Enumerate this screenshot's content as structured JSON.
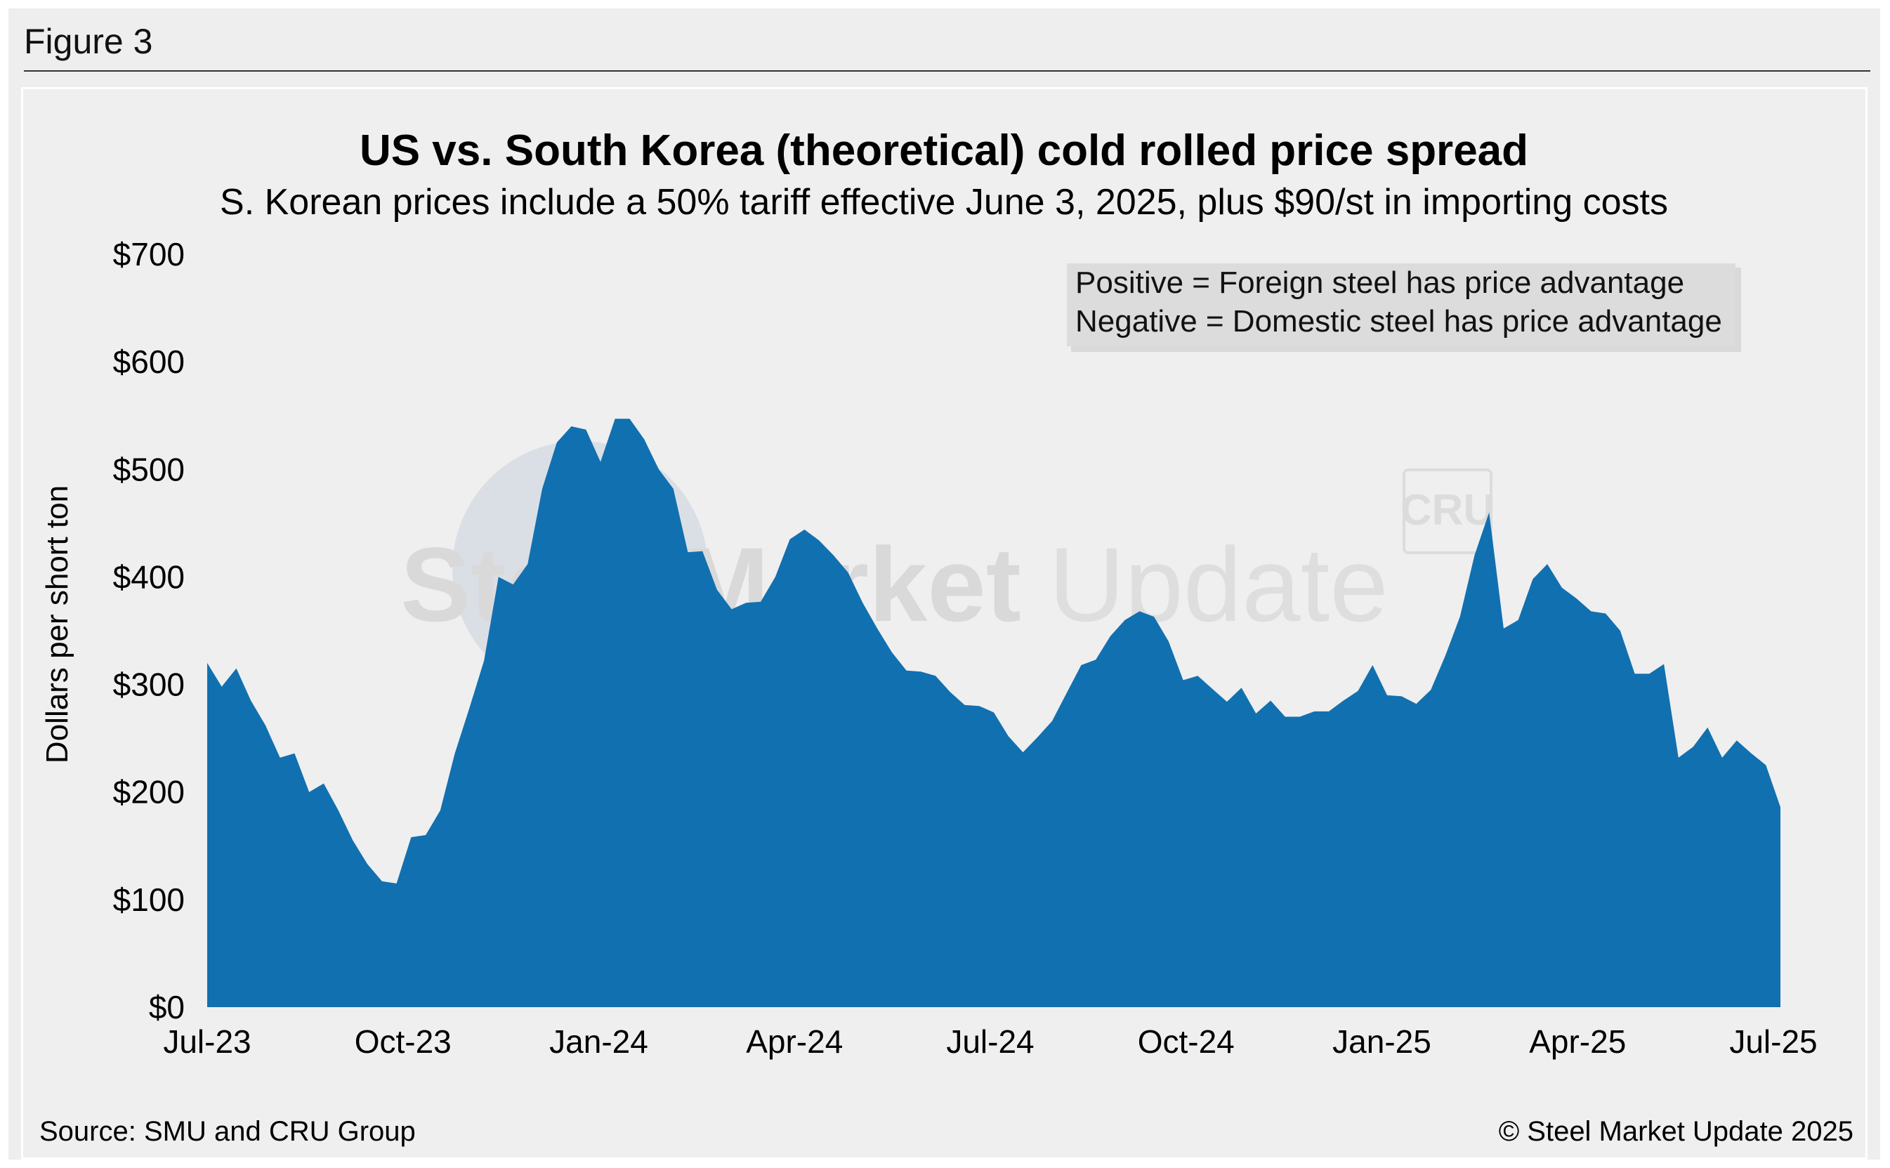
{
  "figure_label": "Figure 3",
  "legend_box": {
    "line1": "Positive = Foreign steel has price advantage",
    "line2": "Negative = Domestic steel has price advantage"
  },
  "source": "Source: SMU and CRU Group",
  "copyright": "© Steel Market Update 2025",
  "watermark": {
    "bold": "Steel Market",
    "light": "Update",
    "badge": "CRU"
  },
  "colors": {
    "area": "#1170b0",
    "background": "#eeeeee"
  },
  "chart_data": {
    "type": "area",
    "title": "US vs. South Korea (theoretical) cold rolled price spread",
    "subtitle": "S. Korean prices include a 50% tariff effective June 3, 2025, plus $90/st in importing costs",
    "ylabel": "Dollars per short ton",
    "ylim": [
      0,
      700
    ],
    "yticks": [
      0,
      100,
      200,
      300,
      400,
      500,
      600,
      700
    ],
    "ytick_labels": [
      "$0",
      "$100",
      "$200",
      "$300",
      "$400",
      "$500",
      "$600",
      "$700"
    ],
    "xtick_labels": [
      "Jul-23",
      "Oct-23",
      "Jan-24",
      "Apr-24",
      "Jul-24",
      "Oct-24",
      "Jan-25",
      "Apr-25",
      "Jul-25"
    ],
    "frequency": "weekly",
    "grid": false,
    "values": [
      320,
      298,
      315,
      285,
      262,
      232,
      236,
      200,
      208,
      183,
      155,
      133,
      117,
      115,
      158,
      160,
      183,
      236,
      278,
      322,
      400,
      393,
      412,
      482,
      525,
      540,
      537,
      507,
      547,
      547,
      528,
      500,
      482,
      423,
      424,
      388,
      370,
      376,
      377,
      400,
      435,
      444,
      434,
      420,
      404,
      376,
      352,
      330,
      313,
      312,
      308,
      293,
      281,
      280,
      274,
      252,
      237,
      251,
      266,
      292,
      318,
      323,
      345,
      360,
      368,
      363,
      340,
      304,
      308,
      296,
      284,
      297,
      273,
      285,
      270,
      270,
      275,
      275,
      285,
      294,
      318,
      290,
      289,
      282,
      295,
      327,
      363,
      420,
      460,
      352,
      360,
      398,
      412,
      390,
      380,
      368,
      366,
      350,
      310,
      310,
      319,
      232,
      242,
      260,
      232,
      248,
      236,
      225,
      186
    ]
  }
}
